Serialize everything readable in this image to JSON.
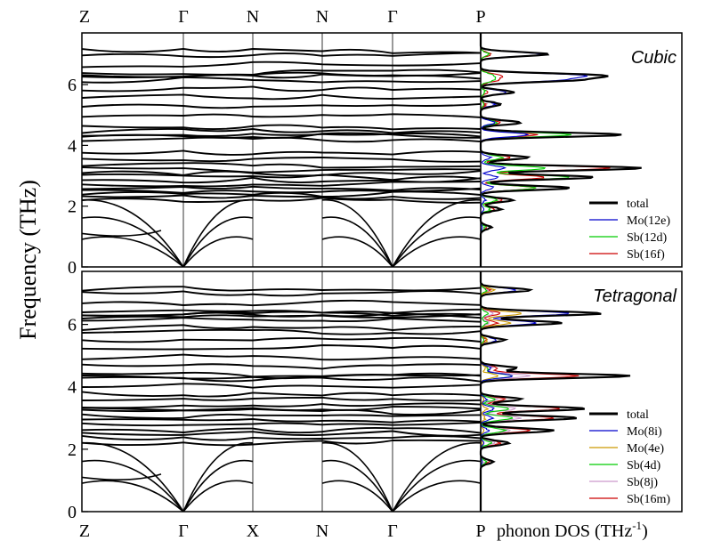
{
  "chart_data": [
    {
      "type": "line",
      "subtype": "phonon-band-structure-with-dos",
      "title": "Cubic",
      "ylabel": "Frequency (THz)",
      "ylim": [
        0,
        7.7
      ],
      "yticks": [
        0,
        2,
        4,
        6
      ],
      "kpath": [
        "Z",
        "Γ",
        "N",
        "N",
        "Γ",
        "P"
      ],
      "band_label": "Cubic",
      "flat_bands_THz": [
        7.1,
        7.0,
        6.65,
        6.4,
        6.3,
        6.25,
        6.15,
        5.85,
        5.6,
        5.3,
        4.95,
        4.6,
        4.45,
        4.38,
        4.3,
        4.2,
        3.75,
        3.55,
        3.35,
        3.2,
        3.1,
        2.95,
        2.85,
        2.75,
        2.6,
        2.5,
        2.4,
        2.3,
        2.2
      ],
      "acoustic_max_THz": 2.2,
      "dos_legend": [
        {
          "name": "total",
          "color": "#000000"
        },
        {
          "name": "Mo(12e)",
          "color": "#0000cc"
        },
        {
          "name": "Sb(12d)",
          "color": "#00cc00"
        },
        {
          "name": "Sb(16f)",
          "color": "#cc0000"
        }
      ],
      "dos_peaks": [
        {
          "f": 7.0,
          "total": 0.42,
          "Mo(12e)": 0.38,
          "Sb(12d)": 0.05,
          "Sb(16f)": 0.06
        },
        {
          "f": 6.3,
          "total": 0.72,
          "Mo(12e)": 0.6,
          "Sb(12d)": 0.08,
          "Sb(16f)": 0.12
        },
        {
          "f": 6.15,
          "total": 0.55,
          "Mo(12e)": 0.45,
          "Sb(12d)": 0.07,
          "Sb(16f)": 0.1
        },
        {
          "f": 5.75,
          "total": 0.2,
          "Mo(12e)": 0.16,
          "Sb(12d)": 0.03,
          "Sb(16f)": 0.04
        },
        {
          "f": 5.35,
          "total": 0.12,
          "Mo(12e)": 0.09,
          "Sb(12d)": 0.02,
          "Sb(16f)": 0.03
        },
        {
          "f": 4.75,
          "total": 0.25,
          "Mo(12e)": 0.08,
          "Sb(12d)": 0.1,
          "Sb(16f)": 0.12
        },
        {
          "f": 4.35,
          "total": 0.88,
          "Mo(12e)": 0.3,
          "Sb(12d)": 0.55,
          "Sb(16f)": 0.35
        },
        {
          "f": 3.6,
          "total": 0.3,
          "Mo(12e)": 0.06,
          "Sb(12d)": 0.14,
          "Sb(16f)": 0.18
        },
        {
          "f": 3.25,
          "total": 1.0,
          "Mo(12e)": 0.15,
          "Sb(12d)": 0.4,
          "Sb(16f)": 0.8
        },
        {
          "f": 2.95,
          "total": 0.7,
          "Mo(12e)": 0.1,
          "Sb(12d)": 0.55,
          "Sb(16f)": 0.4
        },
        {
          "f": 2.6,
          "total": 0.55,
          "Mo(12e)": 0.08,
          "Sb(12d)": 0.35,
          "Sb(16f)": 0.35
        },
        {
          "f": 2.2,
          "total": 0.2,
          "Mo(12e)": 0.03,
          "Sb(12d)": 0.1,
          "Sb(16f)": 0.14
        },
        {
          "f": 1.9,
          "total": 0.12,
          "Mo(12e)": 0.02,
          "Sb(12d)": 0.06,
          "Sb(16f)": 0.08
        },
        {
          "f": 1.3,
          "total": 0.06,
          "Mo(12e)": 0.01,
          "Sb(12d)": 0.03,
          "Sb(16f)": 0.04
        }
      ]
    },
    {
      "type": "line",
      "subtype": "phonon-band-structure-with-dos",
      "title": "Tetragonal",
      "ylabel": "Frequency (THz)",
      "ylim": [
        0,
        7.7
      ],
      "yticks": [
        0,
        2,
        4,
        6
      ],
      "kpath": [
        "Z",
        "Γ",
        "X",
        "N",
        "Γ",
        "P"
      ],
      "band_label": "Tetragonal",
      "xlabel_dos": "phonon DOS (THz",
      "xlabel_dos_exp": "-1",
      "xlabel_dos_close": ")",
      "flat_bands_THz": [
        7.15,
        7.0,
        6.7,
        6.45,
        6.35,
        6.3,
        6.25,
        6.15,
        5.9,
        5.75,
        5.5,
        5.25,
        4.95,
        4.65,
        4.4,
        4.35,
        4.25,
        4.05,
        3.75,
        3.6,
        3.4,
        3.3,
        3.2,
        3.05,
        2.9,
        2.8,
        2.6,
        2.5,
        2.35,
        2.2
      ],
      "acoustic_max_THz": 2.2,
      "dos_legend": [
        {
          "name": "total",
          "color": "#000000"
        },
        {
          "name": "Mo(8i)",
          "color": "#0000cc"
        },
        {
          "name": "Mo(4e)",
          "color": "#cc9900"
        },
        {
          "name": "Sb(4d)",
          "color": "#00cc00"
        },
        {
          "name": "Sb(8j)",
          "color": "#cc99cc"
        },
        {
          "name": "Sb(16m)",
          "color": "#cc0000"
        }
      ],
      "dos_peaks": [
        {
          "f": 7.1,
          "total": 0.3,
          "Mo(8i)": 0.22,
          "Mo(4e)": 0.08,
          "Sb(4d)": 0.03,
          "Sb(8j)": 0.04,
          "Sb(16m)": 0.06
        },
        {
          "f": 6.35,
          "total": 0.75,
          "Mo(8i)": 0.55,
          "Mo(4e)": 0.25,
          "Sb(4d)": 0.05,
          "Sb(8j)": 0.08,
          "Sb(16m)": 0.12
        },
        {
          "f": 6.05,
          "total": 0.5,
          "Mo(8i)": 0.35,
          "Mo(4e)": 0.18,
          "Sb(4d)": 0.04,
          "Sb(8j)": 0.06,
          "Sb(16m)": 0.1
        },
        {
          "f": 5.5,
          "total": 0.15,
          "Mo(8i)": 0.1,
          "Mo(4e)": 0.04,
          "Sb(4d)": 0.02,
          "Sb(8j)": 0.02,
          "Sb(16m)": 0.03
        },
        {
          "f": 4.6,
          "total": 0.22,
          "Mo(8i)": 0.06,
          "Mo(4e)": 0.03,
          "Sb(4d)": 0.05,
          "Sb(8j)": 0.07,
          "Sb(16m)": 0.1
        },
        {
          "f": 4.35,
          "total": 0.92,
          "Mo(8i)": 0.2,
          "Mo(4e)": 0.1,
          "Sb(4d)": 0.2,
          "Sb(8j)": 0.3,
          "Sb(16m)": 0.6
        },
        {
          "f": 3.6,
          "total": 0.25,
          "Mo(8i)": 0.04,
          "Mo(4e)": 0.02,
          "Sb(4d)": 0.08,
          "Sb(8j)": 0.1,
          "Sb(16m)": 0.15
        },
        {
          "f": 3.3,
          "total": 0.65,
          "Mo(8i)": 0.08,
          "Mo(4e)": 0.04,
          "Sb(4d)": 0.18,
          "Sb(8j)": 0.22,
          "Sb(16m)": 0.5
        },
        {
          "f": 3.0,
          "total": 0.6,
          "Mo(8i)": 0.07,
          "Mo(4e)": 0.03,
          "Sb(4d)": 0.2,
          "Sb(8j)": 0.25,
          "Sb(16m)": 0.45
        },
        {
          "f": 2.6,
          "total": 0.45,
          "Mo(8i)": 0.05,
          "Mo(4e)": 0.02,
          "Sb(4d)": 0.15,
          "Sb(8j)": 0.18,
          "Sb(16m)": 0.3
        },
        {
          "f": 2.2,
          "total": 0.18,
          "Mo(8i)": 0.02,
          "Mo(4e)": 0.01,
          "Sb(4d)": 0.06,
          "Sb(8j)": 0.08,
          "Sb(16m)": 0.12
        },
        {
          "f": 1.6,
          "total": 0.08,
          "Mo(8i)": 0.01,
          "Mo(4e)": 0.01,
          "Sb(4d)": 0.03,
          "Sb(8j)": 0.03,
          "Sb(16m)": 0.05
        }
      ]
    }
  ]
}
